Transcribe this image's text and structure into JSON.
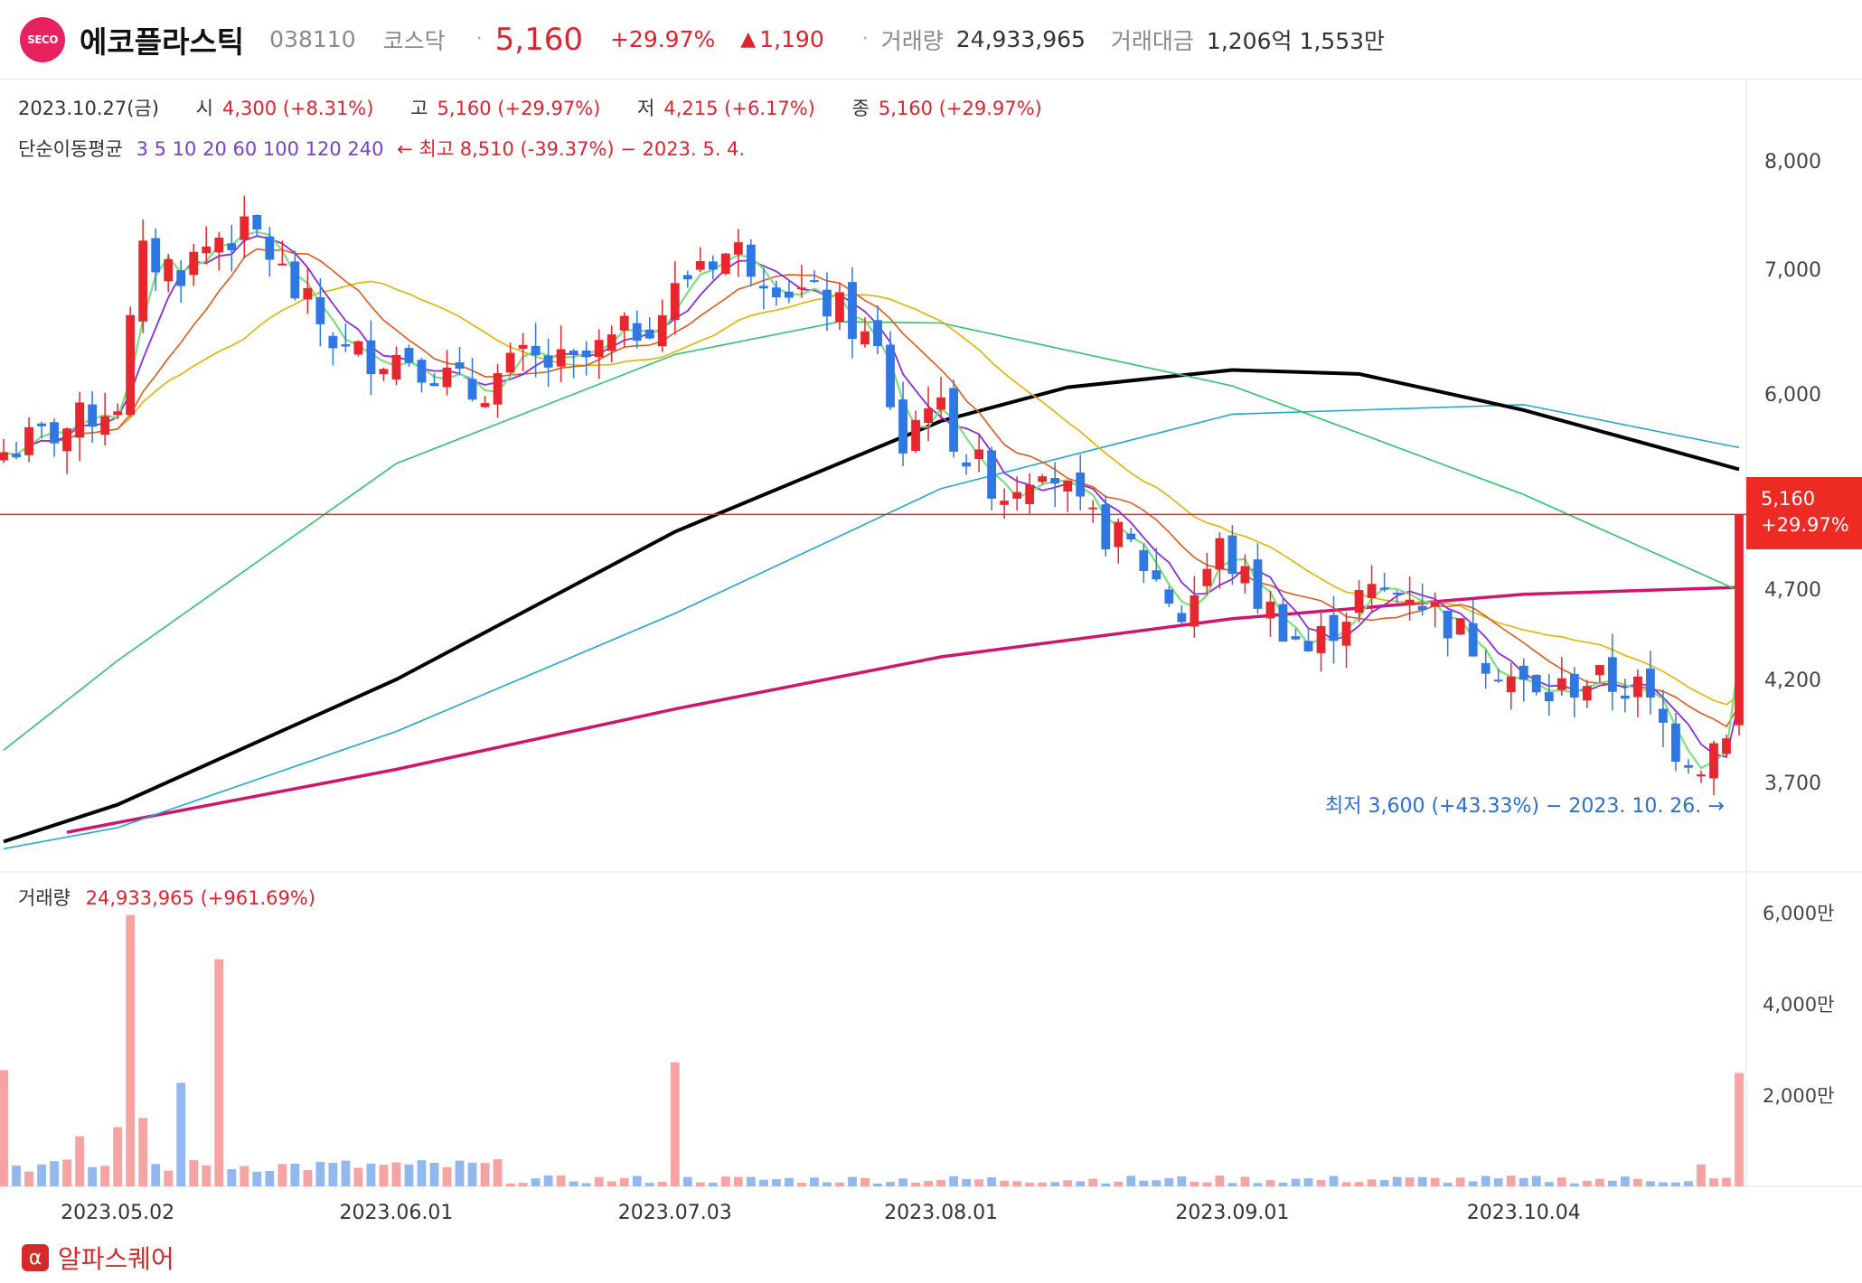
{
  "header": {
    "logo_text": "SECO",
    "stock_name": "에코플라스틱",
    "code": "038110",
    "market": "코스닥",
    "price": "5,160",
    "change_pct": "+29.97%",
    "change_arrow": "🠉",
    "change_abs": "1,190",
    "volume_label": "거래량",
    "volume_value": "24,933,965",
    "amount_label": "거래대금",
    "amount_value": "1,206억 1,553만"
  },
  "ohlc": {
    "date": "2023.10.27(금)",
    "open_label": "시",
    "open": "4,300 (+8.31%)",
    "high_label": "고",
    "high": "5,160 (+29.97%)",
    "low_label": "저",
    "low": "4,215 (+6.17%)",
    "close_label": "종",
    "close": "5,160 (+29.97%)"
  },
  "ma_row": {
    "label": "단순이동평균",
    "overlap_text": "3 5 10 20 60 100 120 240",
    "high_annotation": "← 최고 8,510 (-39.37%) − 2023. 5. 4."
  },
  "low_annotation": "최저 3,600 (+43.33%) − 2023. 10. 26. →",
  "current_label": {
    "price": "5,160",
    "pct": "+29.97%"
  },
  "volume_panel": {
    "label": "거래량",
    "value": "24,933,965 (+961.69%)"
  },
  "brand": {
    "icon": "α",
    "text": "알파스퀘어"
  },
  "colors": {
    "up": "#e8262e",
    "down": "#2f77e2",
    "vol_up": "#f5a3a3",
    "vol_down": "#93b8ef",
    "ma3": "#7be07b",
    "ma5": "#8a2be2",
    "ma10": "#e05a1a",
    "ma20": "#e0b400",
    "ma60": "#2ec46a",
    "ma100": "#000000",
    "ma120": "#20a8d0",
    "ma240": "#d0156e",
    "price_line": "#e8262e"
  },
  "chart_data": {
    "type": "candlestick",
    "y_ticks": [
      3700,
      4200,
      4700,
      6000,
      7000,
      8000
    ],
    "y_tick_labels": [
      "3,700",
      "4,200",
      "4,700",
      "6,000",
      "7,000",
      "8,000"
    ],
    "x_tick_labels": [
      "2023.05.02",
      "2023.06.01",
      "2023.07.03",
      "2023.08.01",
      "2023.09.01",
      "2023.10.04"
    ],
    "x_tick_dates": [
      "2023-05-02",
      "2023-06-01",
      "2023-07-03",
      "2023-08-01",
      "2023-09-01",
      "2023-10-04"
    ],
    "vol_ticks": [
      2000,
      4000,
      6000
    ],
    "vol_tick_labels": [
      "2,000만",
      "4,000만",
      "6,000만"
    ],
    "vol_unit": "만주",
    "anchor_points": [
      [
        "2023-04-19",
        5580
      ],
      [
        "2023-04-26",
        5750
      ],
      [
        "2023-05-02",
        5950
      ],
      [
        "2023-05-04",
        7100
      ],
      [
        "2023-05-09",
        7000
      ],
      [
        "2023-05-12",
        7300
      ],
      [
        "2023-05-17",
        7300
      ],
      [
        "2023-05-22",
        6800
      ],
      [
        "2023-05-26",
        6300
      ],
      [
        "2023-06-02",
        6300
      ],
      [
        "2023-06-09",
        6000
      ],
      [
        "2023-06-15",
        6250
      ],
      [
        "2023-06-21",
        6200
      ],
      [
        "2023-06-27",
        6450
      ],
      [
        "2023-06-30",
        6650
      ],
      [
        "2023-07-05",
        7100
      ],
      [
        "2023-07-10",
        7150
      ],
      [
        "2023-07-14",
        6850
      ],
      [
        "2023-07-20",
        6650
      ],
      [
        "2023-07-25",
        6300
      ],
      [
        "2023-07-27",
        5600
      ],
      [
        "2023-07-31",
        6000
      ],
      [
        "2023-08-03",
        5550
      ],
      [
        "2023-08-08",
        5300
      ],
      [
        "2023-08-11",
        5550
      ],
      [
        "2023-08-16",
        5150
      ],
      [
        "2023-08-22",
        4950
      ],
      [
        "2023-08-28",
        4550
      ],
      [
        "2023-08-31",
        4950
      ],
      [
        "2023-09-05",
        4650
      ],
      [
        "2023-09-11",
        4350
      ],
      [
        "2023-09-15",
        4650
      ],
      [
        "2023-09-21",
        4700
      ],
      [
        "2023-09-27",
        4450
      ],
      [
        "2023-10-05",
        4100
      ],
      [
        "2023-10-11",
        4200
      ],
      [
        "2023-10-17",
        4150
      ],
      [
        "2023-10-20",
        3870
      ],
      [
        "2023-10-24",
        3800
      ],
      [
        "2023-10-26",
        3970
      ],
      [
        "2023-10-27",
        5160
      ]
    ],
    "volume_spikes": [
      [
        "2023-04-19",
        2550
      ],
      [
        "2023-04-27",
        1100
      ],
      [
        "2023-05-02",
        1300
      ],
      [
        "2023-05-03",
        5950
      ],
      [
        "2023-05-04",
        1500
      ],
      [
        "2023-05-09",
        2270
      ],
      [
        "2023-05-12",
        4980
      ],
      [
        "2023-06-02",
        480
      ],
      [
        "2023-07-03",
        2720
      ],
      [
        "2023-10-24",
        480
      ],
      [
        "2023-10-27",
        2490
      ]
    ],
    "ma_series": {
      "ma240": [
        [
          "2023-04-26",
          3480
        ],
        [
          "2023-06-01",
          3760
        ],
        [
          "2023-07-03",
          4050
        ],
        [
          "2023-08-01",
          4320
        ],
        [
          "2023-09-01",
          4530
        ],
        [
          "2023-10-04",
          4670
        ],
        [
          "2023-10-27",
          4710
        ]
      ],
      "ma100": [
        [
          "2023-04-19",
          3440
        ],
        [
          "2023-05-02",
          3600
        ],
        [
          "2023-06-01",
          4200
        ],
        [
          "2023-07-03",
          5050
        ],
        [
          "2023-08-01",
          5800
        ],
        [
          "2023-08-15",
          6050
        ],
        [
          "2023-09-01",
          6180
        ],
        [
          "2023-09-15",
          6150
        ],
        [
          "2023-10-04",
          5880
        ],
        [
          "2023-10-27",
          5460
        ]
      ],
      "ma120": [
        [
          "2023-04-19",
          3410
        ],
        [
          "2023-05-02",
          3500
        ],
        [
          "2023-06-01",
          3940
        ],
        [
          "2023-07-03",
          4560
        ],
        [
          "2023-08-01",
          5330
        ],
        [
          "2023-09-01",
          5850
        ],
        [
          "2023-10-04",
          5920
        ],
        [
          "2023-10-27",
          5610
        ]
      ],
      "ma60": [
        [
          "2023-04-19",
          3850
        ],
        [
          "2023-05-02",
          4300
        ],
        [
          "2023-06-01",
          5500
        ],
        [
          "2023-07-03",
          6300
        ],
        [
          "2023-07-20",
          6560
        ],
        [
          "2023-08-01",
          6550
        ],
        [
          "2023-09-01",
          6060
        ],
        [
          "2023-10-04",
          5290
        ],
        [
          "2023-10-27",
          4690
        ]
      ]
    }
  }
}
